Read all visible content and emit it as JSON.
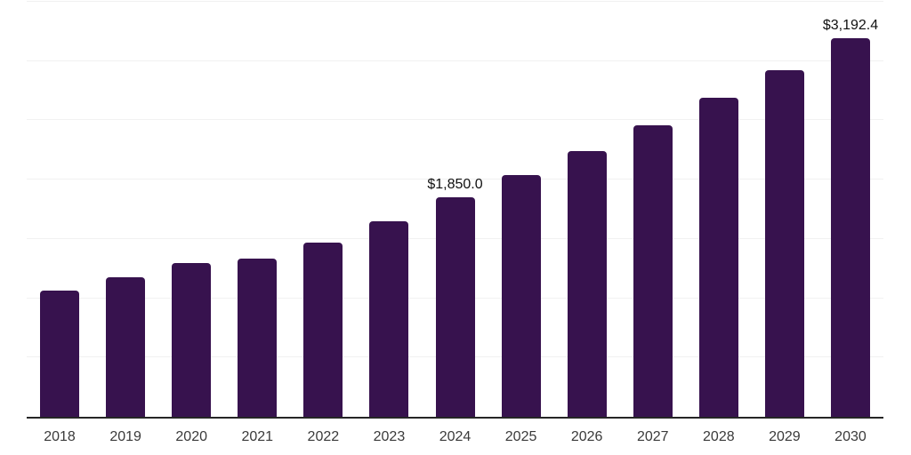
{
  "chart_data": {
    "type": "bar",
    "title": "",
    "xlabel": "",
    "ylabel": "",
    "categories": [
      "2018",
      "2019",
      "2020",
      "2021",
      "2022",
      "2023",
      "2024",
      "2025",
      "2026",
      "2027",
      "2028",
      "2029",
      "2030"
    ],
    "values": [
      1065,
      1180,
      1300,
      1335,
      1470,
      1650,
      1850.0,
      2040,
      2240,
      2460,
      2690,
      2925,
      3192.4
    ],
    "data_labels": [
      "",
      "",
      "",
      "",
      "",
      "",
      "$1,850.0",
      "",
      "",
      "",
      "",
      "",
      "$3,192.4"
    ],
    "ylim": [
      0,
      3500
    ],
    "gridline_interval": 500,
    "grid": "horizontal",
    "legend_position": "none",
    "bar_color": "#37124E",
    "gridline_color": "#F1F1F1",
    "axis_line_color": "#262626",
    "tick_label_color": "#3A3A3A",
    "data_label_color": "#111111",
    "background_color": "#FFFFFF"
  }
}
